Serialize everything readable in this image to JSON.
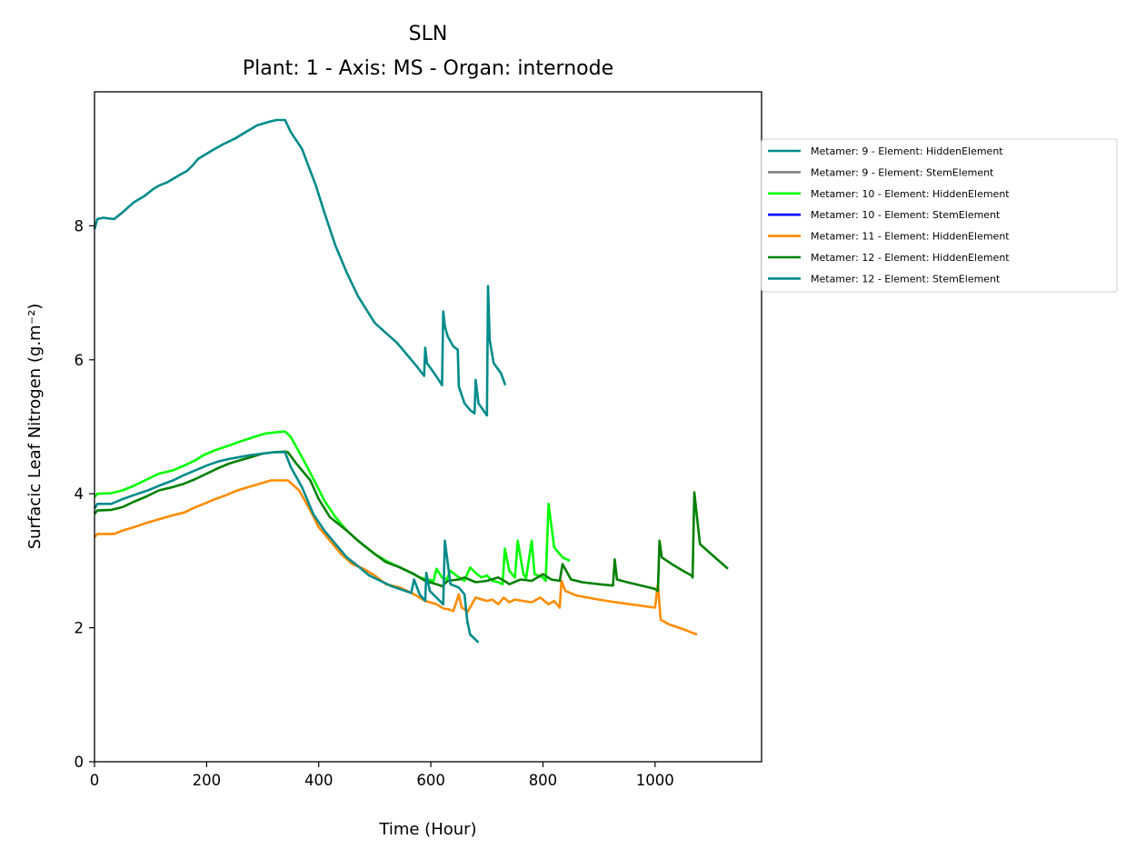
{
  "chart_data": {
    "type": "line",
    "title": "SLN",
    "subtitle": "Plant: 1 - Axis: MS - Organ: internode",
    "xlabel": "Time (Hour)",
    "ylabel": "Surfacic Leaf Nitrogen (g.m⁻²)",
    "xlim": [
      0,
      1190
    ],
    "ylim": [
      0,
      10
    ],
    "xticks": [
      0,
      200,
      400,
      600,
      800,
      1000
    ],
    "yticks": [
      0,
      2,
      4,
      6,
      8
    ],
    "grid": false,
    "legend_position": "outside-right",
    "series": [
      {
        "name": "Metamer: 9 - Element: HiddenElement",
        "color": "#008b8b",
        "x": [
          0,
          5,
          15,
          35,
          50,
          70,
          90,
          105,
          115,
          130,
          150,
          165,
          175,
          185,
          195,
          215,
          230,
          250,
          270,
          290,
          310,
          325,
          340,
          350,
          370,
          395,
          410,
          430,
          450,
          470,
          500,
          520,
          540,
          560,
          575,
          588,
          590,
          593,
          600,
          610,
          620,
          622,
          625,
          630,
          640,
          648,
          650,
          660,
          670,
          678,
          680,
          685,
          700,
          702,
          705,
          712,
          725,
          733
        ],
        "y": [
          7.95,
          8.1,
          8.12,
          8.1,
          8.2,
          8.35,
          8.45,
          8.55,
          8.6,
          8.65,
          8.75,
          8.82,
          8.9,
          9.0,
          9.05,
          9.15,
          9.22,
          9.3,
          9.4,
          9.5,
          9.55,
          9.58,
          9.58,
          9.4,
          9.15,
          8.6,
          8.2,
          7.7,
          7.3,
          6.95,
          6.55,
          6.4,
          6.25,
          6.05,
          5.9,
          5.76,
          6.18,
          5.95,
          5.87,
          5.75,
          5.62,
          6.72,
          6.5,
          6.35,
          6.2,
          6.15,
          5.6,
          5.35,
          5.25,
          5.2,
          5.7,
          5.35,
          5.17,
          7.1,
          6.3,
          5.95,
          5.8,
          5.62
        ]
      },
      {
        "name": "Metamer: 9 - Element: StemElement",
        "color": "#808080",
        "x": [],
        "y": []
      },
      {
        "name": "Metamer: 10 - Element: HiddenElement",
        "color": "#00ff00",
        "x": [
          0,
          5,
          30,
          50,
          70,
          90,
          115,
          140,
          160,
          180,
          195,
          215,
          240,
          260,
          285,
          305,
          325,
          340,
          350,
          370,
          395,
          410,
          430,
          450,
          470,
          500,
          520,
          545,
          565,
          580,
          595,
          605,
          610,
          620,
          628,
          635,
          650,
          660,
          670,
          680,
          690,
          700,
          710,
          720,
          728,
          732,
          740,
          750,
          755,
          765,
          770,
          780,
          785,
          800,
          805,
          810,
          820,
          835,
          848
        ],
        "y": [
          3.95,
          4.0,
          4.01,
          4.05,
          4.12,
          4.2,
          4.3,
          4.35,
          4.42,
          4.5,
          4.58,
          4.65,
          4.72,
          4.78,
          4.85,
          4.9,
          4.92,
          4.93,
          4.85,
          4.55,
          4.15,
          3.9,
          3.65,
          3.45,
          3.3,
          3.1,
          3.0,
          2.9,
          2.82,
          2.75,
          2.72,
          2.7,
          2.88,
          2.75,
          2.72,
          2.85,
          2.75,
          2.7,
          2.9,
          2.82,
          2.75,
          2.78,
          2.7,
          2.68,
          2.65,
          3.18,
          2.85,
          2.75,
          3.3,
          2.8,
          2.74,
          3.3,
          2.8,
          2.75,
          2.7,
          3.85,
          3.2,
          3.05,
          3.0
        ]
      },
      {
        "name": "Metamer: 10 - Element: StemElement",
        "color": "#0000ff",
        "x": [],
        "y": []
      },
      {
        "name": "Metamer: 11 - Element: HiddenElement",
        "color": "#ff8c00",
        "x": [
          0,
          5,
          35,
          50,
          70,
          95,
          115,
          140,
          160,
          180,
          195,
          215,
          235,
          255,
          275,
          295,
          315,
          325,
          340,
          345,
          365,
          385,
          400,
          420,
          440,
          460,
          480,
          500,
          520,
          545,
          570,
          590,
          610,
          620,
          625,
          630,
          640,
          650,
          655,
          660,
          665,
          680,
          700,
          710,
          720,
          730,
          740,
          750,
          765,
          780,
          795,
          810,
          820,
          830,
          833,
          840,
          860,
          900,
          930,
          1000,
          1005,
          1010,
          1025,
          1050,
          1068,
          1075
        ],
        "y": [
          3.35,
          3.4,
          3.4,
          3.45,
          3.5,
          3.57,
          3.62,
          3.68,
          3.72,
          3.8,
          3.85,
          3.92,
          3.98,
          4.05,
          4.1,
          4.15,
          4.2,
          4.2,
          4.2,
          4.2,
          4.05,
          3.75,
          3.5,
          3.3,
          3.1,
          2.95,
          2.88,
          2.78,
          2.65,
          2.6,
          2.5,
          2.4,
          2.35,
          2.3,
          2.28,
          2.28,
          2.25,
          2.5,
          2.3,
          2.28,
          2.23,
          2.45,
          2.4,
          2.42,
          2.35,
          2.45,
          2.38,
          2.42,
          2.4,
          2.38,
          2.45,
          2.35,
          2.4,
          2.3,
          2.7,
          2.55,
          2.48,
          2.42,
          2.38,
          2.3,
          2.65,
          2.12,
          2.05,
          1.98,
          1.92,
          1.9
        ]
      },
      {
        "name": "Metamer: 12 - Element: HiddenElement",
        "color": "#008000",
        "x": [
          0,
          5,
          30,
          50,
          70,
          90,
          115,
          140,
          160,
          180,
          200,
          220,
          240,
          260,
          280,
          300,
          320,
          340,
          345,
          360,
          385,
          400,
          420,
          450,
          470,
          500,
          520,
          545,
          570,
          590,
          610,
          620,
          630,
          650,
          660,
          680,
          700,
          720,
          735,
          740,
          760,
          780,
          800,
          815,
          830,
          835,
          850,
          870,
          900,
          925,
          928,
          932,
          950,
          980,
          1000,
          1005,
          1008,
          1012,
          1030,
          1050,
          1065,
          1067,
          1070,
          1080,
          1100,
          1130
        ],
        "y": [
          3.7,
          3.75,
          3.76,
          3.8,
          3.88,
          3.95,
          4.05,
          4.1,
          4.15,
          4.22,
          4.3,
          4.38,
          4.45,
          4.5,
          4.55,
          4.6,
          4.62,
          4.63,
          4.62,
          4.45,
          4.2,
          3.92,
          3.65,
          3.45,
          3.3,
          3.1,
          2.98,
          2.9,
          2.8,
          2.7,
          2.65,
          2.62,
          2.7,
          2.72,
          2.75,
          2.68,
          2.7,
          2.75,
          2.68,
          2.65,
          2.72,
          2.7,
          2.8,
          2.72,
          2.7,
          2.95,
          2.72,
          2.68,
          2.65,
          2.63,
          3.02,
          2.72,
          2.68,
          2.62,
          2.58,
          2.55,
          3.3,
          3.05,
          2.95,
          2.85,
          2.78,
          2.75,
          4.02,
          3.25,
          3.1,
          2.88
        ]
      },
      {
        "name": "Metamer: 12 - Element: StemElement",
        "color": "#008b8b",
        "x": [
          0,
          5,
          30,
          50,
          70,
          95,
          115,
          140,
          160,
          180,
          200,
          220,
          240,
          260,
          280,
          300,
          320,
          340,
          350,
          370,
          390,
          410,
          430,
          450,
          470,
          490,
          510,
          530,
          555,
          565,
          570,
          580,
          590,
          592,
          598,
          610,
          622,
          625,
          635,
          650,
          660,
          665,
          670,
          685
        ],
        "y": [
          3.78,
          3.85,
          3.85,
          3.92,
          3.98,
          4.05,
          4.12,
          4.2,
          4.28,
          4.35,
          4.42,
          4.48,
          4.52,
          4.55,
          4.58,
          4.6,
          4.62,
          4.62,
          4.4,
          4.1,
          3.7,
          3.45,
          3.25,
          3.05,
          2.92,
          2.78,
          2.7,
          2.62,
          2.55,
          2.52,
          2.72,
          2.5,
          2.4,
          2.82,
          2.55,
          2.45,
          2.35,
          3.3,
          2.65,
          2.6,
          2.5,
          2.1,
          1.9,
          1.78
        ]
      }
    ]
  }
}
